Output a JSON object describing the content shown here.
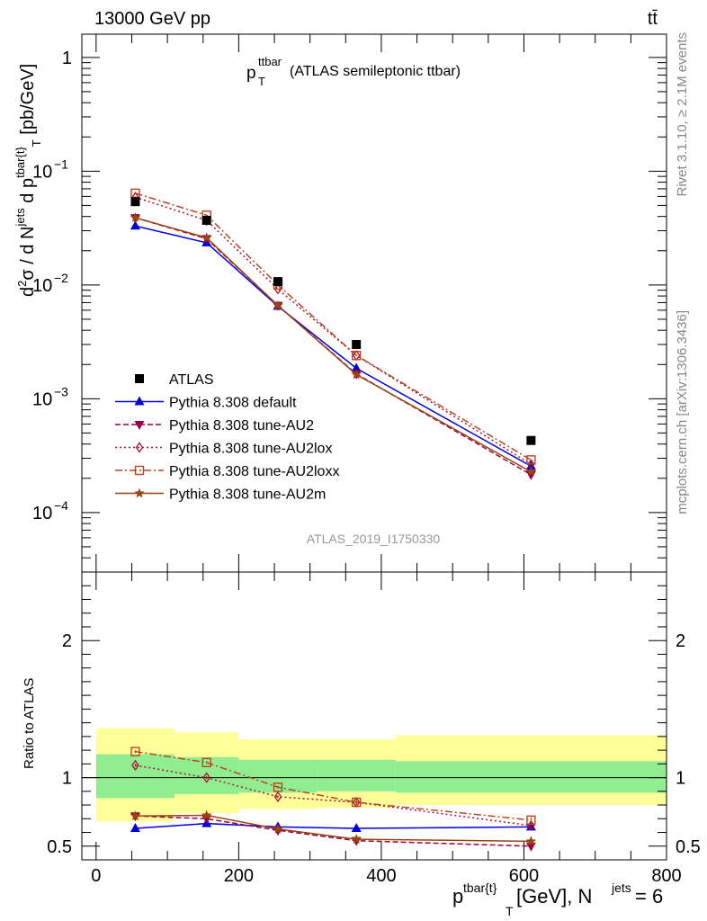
{
  "header": {
    "process": "13000 GeV pp",
    "final_state": "tt̄",
    "side_text_top": "Rivet 3.1.10, ≥ 2.1M events",
    "side_text_bottom": "mcplots.cern.ch [arXiv:1306.3436]",
    "analysis_id": "ATLAS_2019_I1750330"
  },
  "chart_data": [
    {
      "type": "line",
      "scale": "log",
      "title": "p_T^ttbar (ATLAS semileptonic ttbar)",
      "title_main": "p",
      "title_sub": "T",
      "title_sup": "ttbar",
      "title_rest": " (ATLAS semileptonic ttbar)",
      "ylabel": "d²σ / d N^jets d p^tbar{t}_T [pb/GeV]",
      "xlim": [
        -20,
        800
      ],
      "ylim": [
        3e-05,
        1.6
      ],
      "y_ticks": [
        {
          "value": 1,
          "label": "1"
        },
        {
          "value": 0.1,
          "label": "10",
          "exp": "−1"
        },
        {
          "value": 0.01,
          "label": "10",
          "exp": "−2"
        },
        {
          "value": 0.001,
          "label": "10",
          "exp": "−3"
        },
        {
          "value": 0.0001,
          "label": "10",
          "exp": "−4"
        }
      ],
      "x": [
        55,
        155,
        255,
        365,
        610
      ],
      "bin_edges": [
        0,
        110,
        200,
        310,
        420,
        800
      ],
      "data": {
        "name": "ATLAS",
        "color": "#000000",
        "values": [
          0.054,
          0.037,
          0.0107,
          0.003,
          0.00043
        ]
      },
      "series": [
        {
          "name": "Pythia 8.308 default",
          "color": "#0000dd",
          "style": "solid",
          "marker": "triangle-up",
          "values": [
            0.033,
            0.0235,
            0.0065,
            0.00185,
            0.000255
          ]
        },
        {
          "name": "Pythia 8.308 tune-AU2",
          "color": "#990044",
          "style": "dashed",
          "marker": "triangle-down",
          "values": [
            0.039,
            0.0255,
            0.0066,
            0.00165,
            0.000215
          ]
        },
        {
          "name": "Pythia 8.308 tune-AU2lox",
          "color": "#aa1133",
          "style": "dotted",
          "marker": "diamond-open",
          "values": [
            0.059,
            0.037,
            0.0092,
            0.0024,
            0.000265
          ]
        },
        {
          "name": "Pythia 8.308 tune-AU2loxx",
          "color": "#bb4422",
          "style": "dashdot",
          "marker": "square-open",
          "values": [
            0.064,
            0.041,
            0.01,
            0.0024,
            0.00029
          ]
        },
        {
          "name": "Pythia 8.308 tune-AU2m",
          "color": "#994411",
          "style": "solid",
          "marker": "star",
          "values": [
            0.039,
            0.026,
            0.0066,
            0.00163,
            0.000228
          ]
        }
      ]
    },
    {
      "type": "line",
      "ylabel": "Ratio to ATLAS",
      "xlabel": "p^tbar{t}_T [GeV], N^jets = 6",
      "xlabel_main": "p",
      "xlabel_sup": "tbar{t}",
      "xlabel_sub": "T",
      "xlabel_mid": " [GeV], N",
      "xlabel_sup2": "jets",
      "xlabel_end": " = 6",
      "ylim": [
        0.4,
        2.5
      ],
      "y_ticks": [
        0.5,
        1,
        2
      ],
      "x_ticks": [
        0,
        200,
        400,
        600,
        800
      ],
      "bands": [
        {
          "x0": 0,
          "x1": 110,
          "stat": [
            0.85,
            1.17
          ],
          "total": [
            0.68,
            1.36
          ]
        },
        {
          "x0": 110,
          "x1": 200,
          "stat": [
            0.88,
            1.15
          ],
          "total": [
            0.74,
            1.33
          ]
        },
        {
          "x0": 200,
          "x1": 310,
          "stat": [
            0.89,
            1.13
          ],
          "total": [
            0.77,
            1.28
          ]
        },
        {
          "x0": 310,
          "x1": 420,
          "stat": [
            0.9,
            1.13
          ],
          "total": [
            0.78,
            1.28
          ]
        },
        {
          "x0": 420,
          "x1": 800,
          "stat": [
            0.89,
            1.12
          ],
          "total": [
            0.8,
            1.31
          ]
        }
      ],
      "series": [
        {
          "name": "Pythia 8.308 default",
          "values": [
            0.63,
            0.665,
            0.64,
            0.63,
            0.64
          ],
          "errors": [
            0.01,
            0.01,
            0.01,
            0.02,
            0.02
          ]
        },
        {
          "name": "Pythia 8.308 tune-AU2",
          "values": [
            0.72,
            0.7,
            0.615,
            0.54,
            0.5
          ],
          "errors": [
            0.01,
            0.01,
            0.01,
            0.02,
            0.02
          ]
        },
        {
          "name": "Pythia 8.308 tune-AU2lox",
          "values": [
            1.09,
            1.0,
            0.86,
            0.82,
            0.65
          ],
          "errors": [
            0.01,
            0.01,
            0.01,
            0.02,
            0.02
          ]
        },
        {
          "name": "Pythia 8.308 tune-AU2loxx",
          "values": [
            1.19,
            1.11,
            0.93,
            0.82,
            0.69
          ],
          "errors": [
            0.01,
            0.01,
            0.01,
            0.02,
            0.02
          ]
        },
        {
          "name": "Pythia 8.308 tune-AU2m",
          "values": [
            0.72,
            0.725,
            0.625,
            0.55,
            0.535
          ],
          "errors": [
            0.01,
            0.01,
            0.01,
            0.02,
            0.02
          ]
        }
      ],
      "band_colors": {
        "stat": "#90ee90",
        "total": "#ffff99"
      }
    }
  ]
}
